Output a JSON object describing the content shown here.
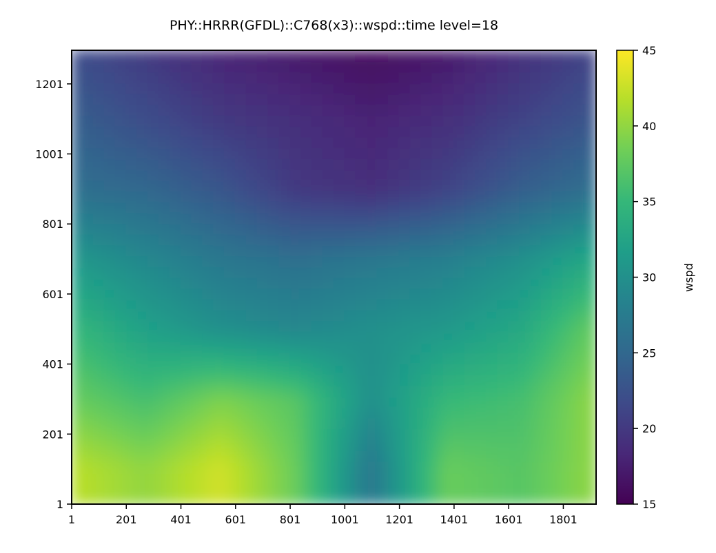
{
  "chart_data": {
    "type": "heatmap",
    "title": "PHY::HRRR(GFDL)::C768(x3)::wspd::time level=18",
    "xlabel": "",
    "ylabel": "",
    "x_tick_labels": [
      "1",
      "201",
      "401",
      "601",
      "801",
      "1001",
      "1201",
      "1401",
      "1601",
      "1801"
    ],
    "y_tick_labels": [
      "1",
      "201",
      "401",
      "601",
      "801",
      "1001",
      "1201"
    ],
    "xlim": [
      1,
      1921
    ],
    "ylim": [
      1,
      1297
    ],
    "colorbar": {
      "label": "wspd",
      "range": [
        15,
        45
      ],
      "ticks": [
        "15",
        "20",
        "25",
        "30",
        "35",
        "40",
        "45"
      ],
      "colormap": "viridis"
    },
    "field_description_rows": [
      {
        "y": 1297,
        "values": [
          22,
          20,
          18,
          17,
          16,
          17,
          19,
          21
        ]
      },
      {
        "y": 1101,
        "values": [
          24,
          22,
          20,
          19,
          18,
          19,
          21,
          23
        ]
      },
      {
        "y": 901,
        "values": [
          26,
          25,
          23,
          20,
          19,
          21,
          24,
          26
        ]
      },
      {
        "y": 701,
        "values": [
          31,
          29,
          27,
          26,
          27,
          28,
          30,
          33
        ]
      },
      {
        "y": 501,
        "values": [
          35,
          32,
          30,
          29,
          30,
          31,
          33,
          38
        ]
      },
      {
        "y": 301,
        "values": [
          38,
          36,
          39,
          37,
          30,
          35,
          36,
          40
        ]
      },
      {
        "y": 101,
        "values": [
          42,
          40,
          43,
          38,
          27,
          38,
          37,
          40
        ]
      }
    ],
    "field_x": [
      1,
      275,
      550,
      825,
      1100,
      1375,
      1650,
      1921
    ]
  }
}
